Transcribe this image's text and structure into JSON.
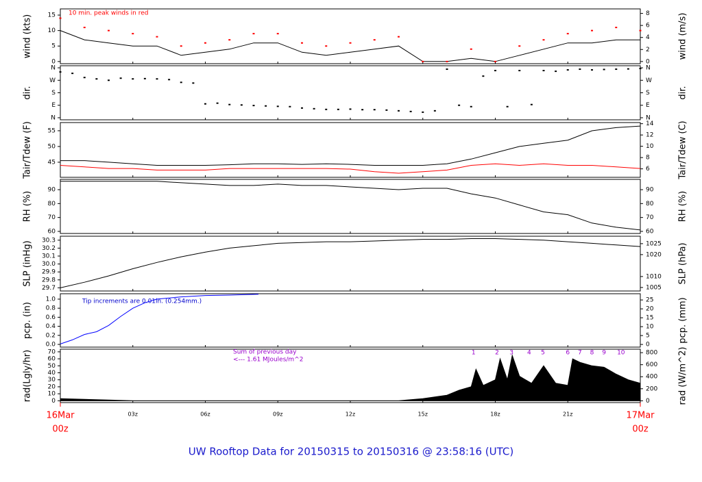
{
  "title": "UW Rooftop Data for 20150315  to  20150316 @ 23:58:16  (UTC)",
  "x_axis": {
    "xlim": [
      0,
      24
    ],
    "xticks": [
      {
        "value": 3,
        "label": "03z"
      },
      {
        "value": 6,
        "label": "06z"
      },
      {
        "value": 9,
        "label": "09z"
      },
      {
        "value": 12,
        "label": "12z"
      },
      {
        "value": 15,
        "label": "15z"
      },
      {
        "value": 18,
        "label": "18z"
      },
      {
        "value": 21,
        "label": "21z"
      }
    ],
    "start": {
      "value": 0,
      "label": [
        "16Mar",
        "00z"
      ]
    },
    "end": {
      "value": 24,
      "label": [
        "17Mar",
        "00z"
      ]
    }
  },
  "chart_data": [
    {
      "type": "line",
      "ylabel": "wind (kts)",
      "y2label": "wind (m/s)",
      "ylim": [
        -0.7,
        17
      ],
      "y2lim": [
        -0.36,
        8.75
      ],
      "yticks": [
        0,
        5,
        10,
        15
      ],
      "y2ticks": [
        0,
        2,
        4,
        6,
        8
      ],
      "annotations": [
        "10 min. peak winds in red"
      ],
      "series": [
        {
          "type": "line",
          "color": "#000000",
          "x": [
            0,
            1,
            2,
            3,
            4,
            5,
            6,
            7,
            8,
            9,
            10,
            11,
            12,
            13,
            14,
            15,
            16,
            17,
            18,
            19,
            20,
            21,
            22,
            23,
            24
          ],
          "values": [
            10,
            7,
            6,
            5,
            5,
            2,
            3,
            4,
            6,
            6,
            3,
            2,
            3,
            4,
            5,
            0,
            0,
            1,
            0,
            2,
            4,
            6,
            6,
            7,
            7
          ]
        },
        {
          "type": "dots",
          "color": "#ff0000",
          "x": [
            0,
            1,
            2,
            3,
            4,
            5,
            6,
            7,
            8,
            9,
            10,
            11,
            12,
            13,
            14,
            15,
            16,
            17,
            18,
            19,
            20,
            21,
            22,
            23,
            24
          ],
          "values": [
            14,
            11,
            10,
            9,
            8,
            5,
            6,
            7,
            9,
            9,
            6,
            5,
            6,
            7,
            8,
            0,
            0,
            4,
            0,
            5,
            7,
            9,
            10,
            11,
            10
          ]
        }
      ]
    },
    {
      "type": "scatter",
      "ylabel": "dir.",
      "y2label": "dir.",
      "ylim": [
        -15,
        375
      ],
      "y2lim": [
        -15,
        375
      ],
      "yticks": [
        {
          "value": 0,
          "label": "N"
        },
        {
          "value": 90,
          "label": "E"
        },
        {
          "value": 180,
          "label": "S"
        },
        {
          "value": 270,
          "label": "W"
        },
        {
          "value": 360,
          "label": "N"
        }
      ],
      "y2ticks": [
        {
          "value": 0,
          "label": "N"
        },
        {
          "value": 90,
          "label": "E"
        },
        {
          "value": 180,
          "label": "S"
        },
        {
          "value": 270,
          "label": "W"
        },
        {
          "value": 360,
          "label": "N"
        }
      ],
      "series": [
        {
          "type": "dots",
          "color": "#000000",
          "x": [
            0,
            0.5,
            1,
            1.5,
            2,
            2.5,
            3,
            3.5,
            4,
            4.5,
            5,
            5.5,
            6,
            6.5,
            7,
            7.5,
            8,
            8.5,
            9,
            9.5,
            10,
            10.5,
            11,
            11.5,
            12,
            12.5,
            13,
            13.5,
            14,
            14.5,
            15,
            15.5,
            16,
            16.5,
            17,
            17.5,
            18,
            18.5,
            19,
            19.5,
            20,
            20.5,
            21,
            21.5,
            22,
            22.5,
            23,
            23.5,
            24
          ],
          "values": [
            330,
            320,
            290,
            280,
            270,
            285,
            280,
            282,
            280,
            275,
            255,
            250,
            100,
            105,
            95,
            92,
            88,
            85,
            82,
            80,
            70,
            65,
            60,
            60,
            62,
            58,
            58,
            55,
            50,
            45,
            40,
            50,
            350,
            90,
            80,
            300,
            340,
            80,
            340,
            95,
            340,
            335,
            345,
            350,
            345,
            348,
            350,
            352,
            355
          ]
        }
      ]
    },
    {
      "type": "line",
      "ylabel": "Tair/Tdew (F)",
      "y2label": "Tair/Tdew (C)",
      "ylim": [
        40.2,
        57.6
      ],
      "y2lim": [
        4.5,
        14.2
      ],
      "yticks": [
        45,
        50,
        55
      ],
      "y2ticks": [
        6,
        8,
        10,
        12,
        14
      ],
      "series": [
        {
          "type": "line",
          "color": "#000000",
          "x": [
            0,
            1,
            2,
            3,
            4,
            5,
            6,
            7,
            8,
            9,
            10,
            11,
            12,
            13,
            14,
            15,
            16,
            17,
            18,
            19,
            20,
            21,
            22,
            23,
            24
          ],
          "values": [
            45.5,
            45.5,
            45,
            44.5,
            44,
            44,
            44,
            44.2,
            44.5,
            44.5,
            44.3,
            44.5,
            44.3,
            44,
            44,
            44,
            44.5,
            46,
            48,
            50,
            51,
            52,
            55,
            56,
            56.5
          ]
        },
        {
          "type": "line",
          "color": "#ff0000",
          "x": [
            0,
            1,
            2,
            3,
            4,
            5,
            6,
            7,
            8,
            9,
            10,
            11,
            12,
            13,
            14,
            15,
            16,
            17,
            18,
            19,
            20,
            21,
            22,
            23,
            24
          ],
          "values": [
            44,
            43.5,
            43,
            43,
            42.5,
            42.5,
            42.5,
            43,
            43,
            43,
            43,
            43,
            42.8,
            42,
            41.5,
            42,
            42.5,
            44,
            44.5,
            44,
            44.5,
            44,
            44,
            43.5,
            43
          ]
        }
      ]
    },
    {
      "type": "line",
      "ylabel": "RH (%)",
      "y2label": "RH (%)",
      "ylim": [
        58.5,
        97.4
      ],
      "y2lim": [
        58.5,
        97.4
      ],
      "yticks": [
        60,
        70,
        80,
        90
      ],
      "y2ticks": [
        60,
        70,
        80,
        90
      ],
      "series": [
        {
          "type": "line",
          "color": "#000000",
          "x": [
            0,
            1,
            2,
            3,
            4,
            5,
            6,
            7,
            8,
            9,
            10,
            11,
            12,
            13,
            14,
            15,
            16,
            17,
            18,
            19,
            20,
            21,
            22,
            23,
            24
          ],
          "values": [
            96,
            96,
            96,
            96,
            96,
            95,
            94,
            93,
            93,
            94,
            93,
            93,
            92,
            91,
            90,
            91,
            91,
            87,
            84,
            79,
            74,
            72,
            66,
            63,
            61
          ]
        }
      ]
    },
    {
      "type": "line",
      "ylabel": "SLP (inHg)",
      "y2label": "SLP (hPa)",
      "ylim": [
        29.66,
        30.35
      ],
      "y2lim": [
        1003.4,
        1028.4
      ],
      "yticks": [
        29.7,
        29.8,
        29.9,
        {
          "value": 30,
          "label": "30.0"
        },
        30.1,
        30.2,
        30.3
      ],
      "y2ticks": [
        1005,
        1010,
        1020,
        1025
      ],
      "series": [
        {
          "type": "line",
          "color": "#000000",
          "x": [
            0,
            1,
            2,
            3,
            4,
            5,
            6,
            7,
            8,
            9,
            10,
            11,
            12,
            13,
            14,
            15,
            16,
            17,
            18,
            19,
            20,
            21,
            22,
            23,
            24
          ],
          "values": [
            29.7,
            29.77,
            29.85,
            29.94,
            30.02,
            30.09,
            30.15,
            30.2,
            30.23,
            30.26,
            30.27,
            30.28,
            30.28,
            30.29,
            30.3,
            30.31,
            30.31,
            30.32,
            30.32,
            30.31,
            30.3,
            30.28,
            30.26,
            30.24,
            30.22
          ]
        }
      ]
    },
    {
      "type": "line",
      "ylabel": "pcp. (in)",
      "y2label": "pcp. (mm)",
      "ylim": [
        -0.06,
        1.12
      ],
      "y2lim": [
        -1.5,
        28.5
      ],
      "yticks": [
        {
          "value": 0,
          "label": "0.0"
        },
        0.2,
        0.4,
        0.6,
        0.8,
        {
          "value": 1,
          "label": "1.0"
        }
      ],
      "y2ticks": [
        0,
        5,
        10,
        15,
        20,
        25
      ],
      "annotations": [
        "Tip increments are 0.01in. (0.254mm.)"
      ],
      "series": [
        {
          "type": "line",
          "color": "#0000ff",
          "x": [
            0,
            0.5,
            1,
            1.5,
            2,
            2.5,
            3,
            3.5,
            4,
            5,
            6,
            7,
            8.2
          ],
          "values": [
            0.01,
            0.1,
            0.22,
            0.28,
            0.42,
            0.62,
            0.8,
            0.92,
            1.0,
            1.05,
            1.08,
            1.09,
            1.11
          ]
        }
      ]
    },
    {
      "type": "area",
      "ylabel": "rad(Lgly/hr)",
      "y2label": "rad (W/m^2)",
      "ylim": [
        -2.6,
        73.8
      ],
      "y2lim": [
        -30,
        858
      ],
      "yticks": [
        0,
        10,
        20,
        30,
        40,
        50,
        60,
        70
      ],
      "y2ticks": [
        0,
        200,
        400,
        600,
        800
      ],
      "annotations": [
        "Sum of previous day",
        "<--- 1.61 MJoules/m^2"
      ],
      "markers": {
        "labels": [
          "1",
          "2",
          "3",
          "4",
          "5",
          "6",
          "7",
          "8",
          "9",
          "10"
        ],
        "x": [
          17.1,
          18.07,
          18.67,
          19.4,
          19.97,
          21.0,
          21.5,
          22.0,
          22.5,
          23.2
        ]
      },
      "series": [
        {
          "type": "area",
          "color": "#000000",
          "x": [
            0,
            1,
            2,
            3,
            14,
            15,
            16,
            16.5,
            17,
            17.2,
            17.5,
            18,
            18.2,
            18.5,
            18.7,
            19,
            19.5,
            20,
            20.5,
            21,
            21.2,
            21.5,
            22,
            22.5,
            23,
            23.5,
            24
          ],
          "values": [
            3,
            2,
            1,
            0,
            0,
            3,
            8,
            15,
            20,
            45,
            22,
            30,
            60,
            30,
            65,
            35,
            25,
            50,
            25,
            22,
            60,
            55,
            50,
            48,
            38,
            30,
            25
          ]
        }
      ]
    }
  ]
}
